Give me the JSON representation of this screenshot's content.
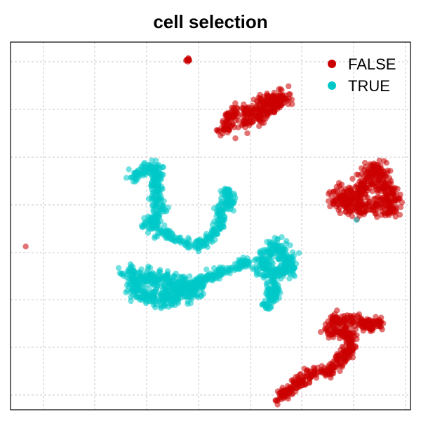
{
  "chart_data": {
    "type": "scatter",
    "title": "cell selection",
    "xlabel": "",
    "ylabel": "",
    "xlim": [
      0,
      100
    ],
    "ylim": [
      0,
      100
    ],
    "grid": true,
    "legend_position": "top-right",
    "series": [
      {
        "name": "FALSE",
        "color": "#CC0000",
        "clusters": [
          {
            "id": "top-tiny",
            "points": [
              [
                44.2,
                94.8
              ],
              [
                44.5,
                95.1
              ],
              [
                44.8,
                95.5
              ],
              [
                44.4,
                95.0
              ]
            ],
            "spread": 0.3,
            "count": 12
          },
          {
            "id": "top-blob",
            "path": [
              [
                53.5,
                75.8
              ],
              [
                54.5,
                79.5
              ],
              [
                56,
                81
              ],
              [
                58.5,
                80.5
              ],
              [
                61,
                82
              ],
              [
                63.5,
                84
              ],
              [
                66,
                84.5
              ],
              [
                67.5,
                86
              ],
              [
                69,
                84.5
              ],
              [
                65,
                82
              ],
              [
                62,
                79.5
              ],
              [
                59,
                79
              ],
              [
                57,
                77.5
              ]
            ],
            "spread": 1.0,
            "count": 320
          },
          {
            "id": "right-blob",
            "path": [
              [
                80.5,
                58
              ],
              [
                82,
                56.5
              ],
              [
                84,
                55.5
              ],
              [
                86,
                55
              ],
              [
                88,
                54.5
              ],
              [
                90,
                55
              ],
              [
                92,
                56
              ],
              [
                94.5,
                54.5
              ],
              [
                96,
                56
              ],
              [
                95,
                58.5
              ],
              [
                93,
                61.5
              ],
              [
                92.5,
                64.5
              ],
              [
                91,
                66
              ],
              [
                89.5,
                62.5
              ],
              [
                87.5,
                58.5
              ],
              [
                85,
                58
              ],
              [
                82,
                59.5
              ]
            ],
            "spread": 1.2,
            "count": 500
          },
          {
            "id": "left-single",
            "points": [
              [
                3.8,
                44.4
              ]
            ],
            "spread": 0,
            "count": 1
          },
          {
            "id": "bottom-curve",
            "path": [
              [
                67,
                2.7
              ],
              [
                68.5,
                4.6
              ],
              [
                70,
                5.5
              ],
              [
                71.5,
                7.3
              ],
              [
                73,
                8.2
              ],
              [
                75,
                9.8
              ],
              [
                77,
                10.5
              ],
              [
                79,
                10.6
              ],
              [
                81.5,
                12.2
              ],
              [
                83,
                14.4
              ],
              [
                84.5,
                16.2
              ],
              [
                85.8,
                17.5
              ],
              [
                85,
                19.4
              ],
              [
                84,
                21.1
              ],
              [
                82,
                21.0
              ],
              [
                80.5,
                20.4
              ],
              [
                79.5,
                21.7
              ],
              [
                80,
                23.7
              ],
              [
                81.5,
                24.9
              ],
              [
                83.5,
                24.5
              ],
              [
                85.5,
                24.6
              ],
              [
                87.5,
                24.1
              ],
              [
                89.5,
                22.4
              ],
              [
                91.5,
                23.7
              ],
              [
                92.5,
                22.5
              ]
            ],
            "spread": 0.8,
            "count": 520
          },
          {
            "id": "stray",
            "points": [
              [
                59.2,
                75.2
              ],
              [
                68.2,
                37.0
              ]
            ],
            "spread": 0,
            "count": 2
          }
        ]
      },
      {
        "name": "TRUE",
        "color": "#00C8C8",
        "clusters": [
          {
            "id": "left-arc",
            "path": [
              [
                30.5,
                62.8
              ],
              [
                32,
                64.2
              ],
              [
                33.5,
                65.5
              ],
              [
                35,
                66
              ],
              [
                36.5,
                65.8
              ],
              [
                36.8,
                63
              ],
              [
                36,
                60
              ],
              [
                36.8,
                57.5
              ],
              [
                37.2,
                55
              ],
              [
                36.5,
                52.5
              ],
              [
                35,
                51.5
              ],
              [
                34.5,
                50
              ],
              [
                36.5,
                49.2
              ],
              [
                38.5,
                48.2
              ],
              [
                40.5,
                47.6
              ],
              [
                42,
                46.7
              ]
            ],
            "spread": 0.9,
            "count": 300
          },
          {
            "id": "center-arc",
            "path": [
              [
                44,
                44.8
              ],
              [
                46,
                44.8
              ],
              [
                48,
                45
              ],
              [
                50,
                46.6
              ],
              [
                51.5,
                48.8
              ],
              [
                52.5,
                51.5
              ],
              [
                52.5,
                54.2
              ],
              [
                53,
                57.4
              ],
              [
                54,
                59.5
              ],
              [
                55,
                57.8
              ],
              [
                54.5,
                55
              ]
            ],
            "spread": 0.7,
            "count": 200
          },
          {
            "id": "lower-band",
            "path": [
              [
                29,
                37.4
              ],
              [
                31,
                36.6
              ],
              [
                33,
                36.3
              ],
              [
                35,
                35.8
              ],
              [
                37,
                35.2
              ],
              [
                40,
                34.8
              ],
              [
                42,
                34.6
              ],
              [
                43,
                33.9
              ],
              [
                44.5,
                34.5
              ],
              [
                46,
                33.3
              ],
              [
                46,
                31.8
              ],
              [
                44.5,
                32.3
              ],
              [
                42.5,
                32
              ],
              [
                41,
                30.8
              ],
              [
                39,
                30.5
              ],
              [
                37,
                30.2
              ],
              [
                35,
                30.4
              ],
              [
                33.5,
                31.3
              ],
              [
                32,
                32.2
              ],
              [
                30.5,
                33.3
              ],
              [
                29.5,
                35
              ]
            ],
            "spread": 1.3,
            "count": 500
          },
          {
            "id": "lower-tail",
            "path": [
              [
                46,
                34
              ],
              [
                48,
                35
              ],
              [
                50,
                36.4
              ],
              [
                52,
                37.5
              ],
              [
                54,
                38.1
              ],
              [
                56,
                38.6
              ],
              [
                58,
                39.6
              ],
              [
                59.5,
                40.3
              ]
            ],
            "spread": 0.6,
            "count": 140
          },
          {
            "id": "right-group",
            "path": [
              [
                62,
                39.3
              ],
              [
                63.5,
                40.5
              ],
              [
                64.5,
                43
              ],
              [
                66,
                44.6
              ],
              [
                67.5,
                43
              ],
              [
                69.5,
                41
              ],
              [
                70,
                39
              ],
              [
                68.5,
                37.8
              ],
              [
                66.5,
                37.4
              ],
              [
                64.5,
                37
              ],
              [
                63,
                37.5
              ]
            ],
            "spread": 1.0,
            "count": 280
          },
          {
            "id": "right-stem",
            "path": [
              [
                63,
                30
              ],
              [
                64.5,
                31.5
              ],
              [
                66,
                32.6
              ],
              [
                65.5,
                34.5
              ],
              [
                66,
                29.6
              ],
              [
                65,
                28.6
              ],
              [
                63.5,
                28
              ],
              [
                66.8,
                33
              ]
            ],
            "spread": 0.7,
            "count": 90
          },
          {
            "id": "stray",
            "points": [
              [
                86.5,
                51.6
              ]
            ],
            "spread": 0,
            "count": 1
          }
        ]
      }
    ]
  }
}
